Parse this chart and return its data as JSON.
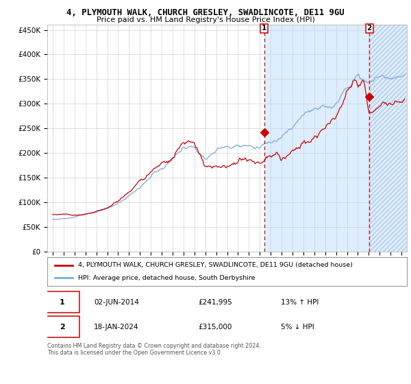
{
  "title": "4, PLYMOUTH WALK, CHURCH GRESLEY, SWADLINCOTE, DE11 9GU",
  "subtitle": "Price paid vs. HM Land Registry's House Price Index (HPI)",
  "legend_line1": "4, PLYMOUTH WALK, CHURCH GRESLEY, SWADLINCOTE, DE11 9GU (detached house)",
  "legend_line2": "HPI: Average price, detached house, South Derbyshire",
  "sale1_date": "02-JUN-2014",
  "sale1_price": "£241,995",
  "sale1_hpi": "13% ↑ HPI",
  "sale1_year": 2014.42,
  "sale1_value": 241995,
  "sale2_date": "18-JAN-2024",
  "sale2_price": "£315,000",
  "sale2_hpi": "5% ↓ HPI",
  "sale2_year": 2024.05,
  "sale2_value": 315000,
  "footer": "Contains HM Land Registry data © Crown copyright and database right 2024.\nThis data is licensed under the Open Government Licence v3.0.",
  "red_color": "#cc0000",
  "blue_color": "#7aabdb",
  "bg_color": "#ddeeff",
  "grid_color": "#cccccc",
  "ylim": [
    0,
    460000
  ],
  "xlim_start": 1994.5,
  "xlim_end": 2027.5
}
